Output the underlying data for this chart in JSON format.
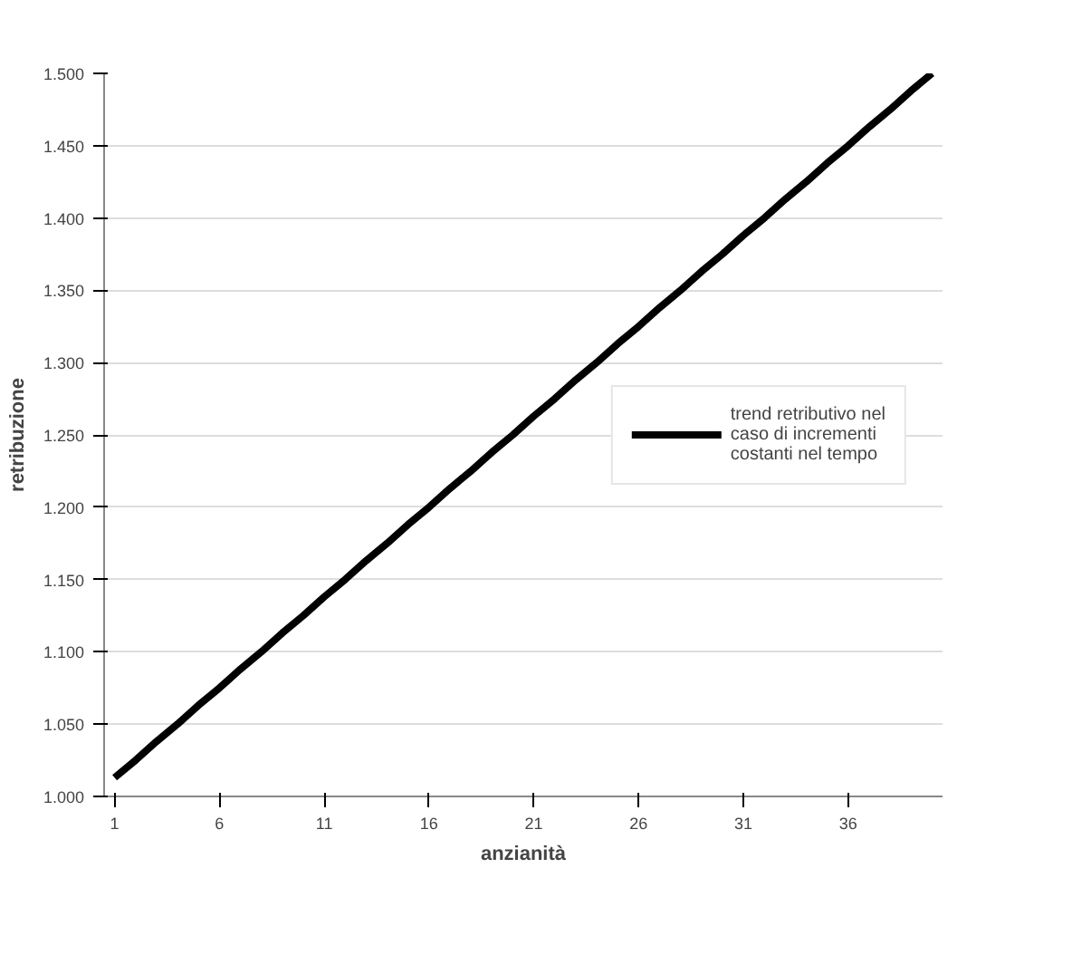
{
  "chart_data": {
    "type": "line",
    "xlabel": "anzianità",
    "ylabel": "retribuzione",
    "x": [
      1,
      2,
      3,
      4,
      5,
      6,
      7,
      8,
      9,
      10,
      11,
      12,
      13,
      14,
      15,
      16,
      17,
      18,
      19,
      20,
      21,
      22,
      23,
      24,
      25,
      26,
      27,
      28,
      29,
      30,
      31,
      32,
      33,
      34,
      35,
      36,
      37,
      38,
      39,
      40
    ],
    "series": [
      {
        "name": "trend retributivo nel caso di incrementi costanti nel tempo",
        "color": "#000000",
        "values": [
          1013,
          1025,
          1038,
          1050,
          1063,
          1075,
          1088,
          1100,
          1113,
          1125,
          1138,
          1150,
          1163,
          1175,
          1188,
          1200,
          1213,
          1225,
          1238,
          1250,
          1263,
          1275,
          1288,
          1300,
          1313,
          1325,
          1338,
          1350,
          1363,
          1375,
          1388,
          1400,
          1413,
          1425,
          1438,
          1450,
          1463,
          1475,
          1488,
          1500
        ]
      }
    ],
    "xlim": [
      0.5,
      40.5
    ],
    "xticks": [
      1,
      6,
      11,
      16,
      21,
      26,
      31,
      36
    ],
    "ylim": [
      1000,
      1500
    ],
    "yticks": [
      {
        "value": 1000,
        "label": "1.000"
      },
      {
        "value": 1050,
        "label": "1.050"
      },
      {
        "value": 1100,
        "label": "1.100"
      },
      {
        "value": 1150,
        "label": "1.150"
      },
      {
        "value": 1200,
        "label": "1.200"
      },
      {
        "value": 1250,
        "label": "1.250"
      },
      {
        "value": 1300,
        "label": "1.300"
      },
      {
        "value": 1350,
        "label": "1.350"
      },
      {
        "value": 1400,
        "label": "1.400"
      },
      {
        "value": 1450,
        "label": "1.450"
      },
      {
        "value": 1500,
        "label": "1.500"
      }
    ],
    "grid": "y",
    "legend": "right",
    "marker": "none",
    "line_style": "solid"
  }
}
